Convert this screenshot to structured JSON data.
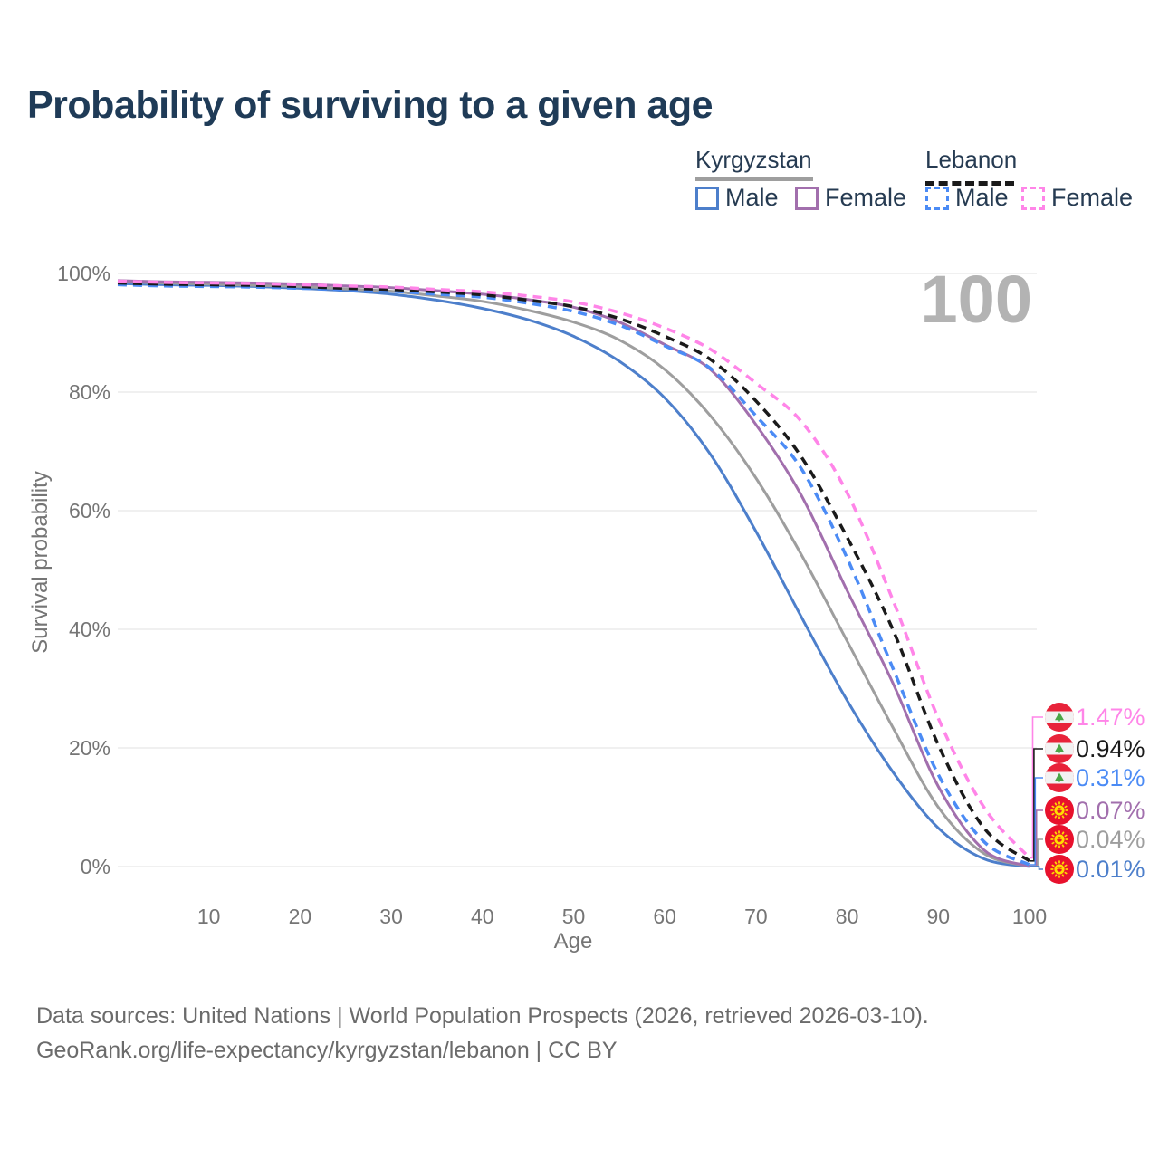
{
  "title": "Probability of surviving to a given age",
  "watermark": "100",
  "legend": {
    "kyrgyzstan": {
      "label": "Kyrgyzstan",
      "male": "Male",
      "female": "Female"
    },
    "lebanon": {
      "label": "Lebanon",
      "male": "Male",
      "female": "Female"
    }
  },
  "colors": {
    "title": "#1f3b57",
    "legend_text": "#263b52",
    "axis_text": "#757575",
    "watermark": "#b3b3b3",
    "gridline": "#e8e8e8",
    "kyrgyzstan_male": "#4d7fcb",
    "kyrgyzstan_all": "#9e9e9e",
    "kyrgyzstan_female": "#a26fad",
    "lebanon_male": "#4b8bf5",
    "lebanon_all": "#1a1a1a",
    "lebanon_female": "#ff85e8",
    "footer_text": "#6b6b6b"
  },
  "chart_data": {
    "type": "line",
    "title": "Probability of surviving to a given age",
    "xlabel": "Age",
    "ylabel": "Survival probability",
    "xlim": [
      0,
      100
    ],
    "ylim": [
      0,
      100
    ],
    "grid": "horizontal",
    "legend_position": "top-right",
    "x_tick_values": [
      10,
      20,
      30,
      40,
      50,
      60,
      70,
      80,
      90,
      100
    ],
    "x_tick_labels": [
      "10",
      "20",
      "30",
      "40",
      "50",
      "60",
      "70",
      "80",
      "90",
      "100"
    ],
    "y_tick_values": [
      0,
      20,
      40,
      60,
      80,
      100
    ],
    "y_tick_labels": [
      "0%",
      "20%",
      "40%",
      "60%",
      "80%",
      "100%"
    ],
    "x": [
      0,
      5,
      10,
      15,
      20,
      25,
      30,
      35,
      40,
      45,
      50,
      55,
      60,
      65,
      70,
      75,
      80,
      85,
      90,
      95,
      100
    ],
    "series": [
      {
        "name": "Kyrgyzstan Male",
        "country": "Kyrgyzstan",
        "sex": "Male",
        "color": "#4d7fcb",
        "dash": "solid",
        "flag": "kyrgyzstan",
        "end_label": "0.01%",
        "values": [
          98.3,
          98.1,
          98.0,
          97.8,
          97.5,
          97.1,
          96.5,
          95.5,
          94.1,
          92.2,
          89.4,
          85.2,
          79.0,
          69.5,
          56.5,
          42.0,
          28.0,
          16.0,
          6.5,
          1.3,
          0.01
        ]
      },
      {
        "name": "Kyrgyzstan",
        "country": "Kyrgyzstan",
        "sex": "Both",
        "color": "#9e9e9e",
        "dash": "solid",
        "flag": "kyrgyzstan",
        "end_label": "0.04%",
        "values": [
          98.6,
          98.4,
          98.2,
          98.0,
          97.8,
          97.4,
          97.0,
          96.2,
          95.3,
          93.8,
          91.8,
          88.8,
          83.8,
          76.0,
          65.5,
          52.5,
          38.0,
          23.5,
          10.0,
          2.2,
          0.04
        ]
      },
      {
        "name": "Kyrgyzstan Female",
        "country": "Kyrgyzstan",
        "sex": "Female",
        "color": "#a26fad",
        "dash": "solid",
        "flag": "kyrgyzstan",
        "end_label": "0.07%",
        "values": [
          98.8,
          98.6,
          98.5,
          98.4,
          98.2,
          97.9,
          97.6,
          97.1,
          96.5,
          95.6,
          94.3,
          91.8,
          88.0,
          83.8,
          74.5,
          62.5,
          46.5,
          31.0,
          13.5,
          2.8,
          0.07
        ]
      },
      {
        "name": "Lebanon Male",
        "country": "Lebanon",
        "sex": "Male",
        "color": "#4b8bf5",
        "dash": "dashed",
        "flag": "lebanon",
        "end_label": "0.31%",
        "values": [
          98.1,
          97.9,
          97.8,
          97.7,
          97.5,
          97.3,
          97.0,
          96.5,
          96.0,
          95.0,
          93.6,
          91.3,
          87.8,
          84.0,
          76.0,
          67.0,
          52.0,
          33.5,
          15.5,
          4.2,
          0.31
        ]
      },
      {
        "name": "Lebanon",
        "country": "Lebanon",
        "sex": "Both",
        "color": "#1a1a1a",
        "dash": "dashed",
        "flag": "lebanon",
        "end_label": "0.94%",
        "values": [
          98.4,
          98.2,
          98.1,
          98.0,
          97.8,
          97.5,
          97.3,
          96.9,
          96.4,
          95.5,
          94.4,
          92.4,
          89.4,
          85.5,
          78.5,
          69.0,
          55.5,
          40.0,
          20.5,
          6.5,
          0.94
        ]
      },
      {
        "name": "Lebanon Female",
        "country": "Lebanon",
        "sex": "Female",
        "color": "#ff85e8",
        "dash": "dashed",
        "flag": "lebanon",
        "end_label": "1.47%",
        "values": [
          98.7,
          98.5,
          98.4,
          98.3,
          98.1,
          97.9,
          97.7,
          97.3,
          96.9,
          96.2,
          95.2,
          93.4,
          90.8,
          87.2,
          81.5,
          75.0,
          63.0,
          45.0,
          25.0,
          10.0,
          1.47
        ]
      }
    ]
  },
  "footer": {
    "line1": "Data sources: United Nations | World Population Prospects (2026, retrieved 2026-03-10).",
    "line2": "GeoRank.org/life-expectancy/kyrgyzstan/lebanon | CC BY"
  }
}
